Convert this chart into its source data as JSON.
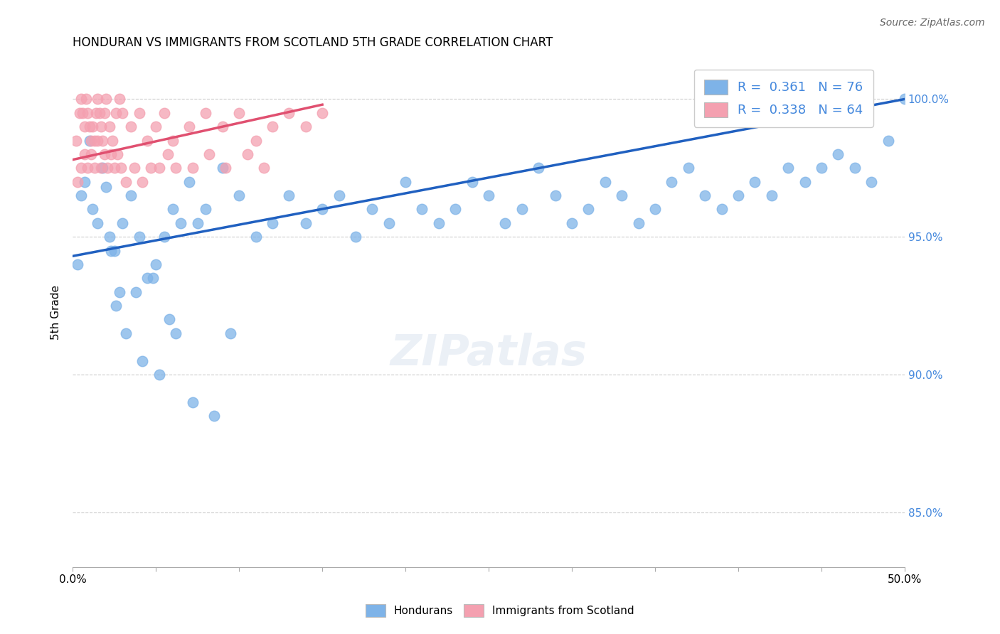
{
  "title": "HONDURAN VS IMMIGRANTS FROM SCOTLAND 5TH GRADE CORRELATION CHART",
  "source": "Source: ZipAtlas.com",
  "ylabel": "5th Grade",
  "ytick_labels": [
    "85.0%",
    "90.0%",
    "95.0%",
    "100.0%"
  ],
  "ytick_values": [
    85.0,
    90.0,
    95.0,
    100.0
  ],
  "xlim": [
    0.0,
    50.0
  ],
  "ylim": [
    83.0,
    101.5
  ],
  "blue_R": 0.361,
  "blue_N": 76,
  "pink_R": 0.338,
  "pink_N": 64,
  "blue_color": "#7EB3E8",
  "pink_color": "#F4A0B0",
  "blue_line_color": "#2060C0",
  "pink_line_color": "#E05070",
  "legend_text_color": "#4488DD",
  "blue_scatter_x": [
    0.3,
    0.5,
    0.7,
    1.0,
    1.2,
    1.5,
    1.8,
    2.0,
    2.2,
    2.5,
    2.8,
    3.0,
    3.5,
    4.0,
    4.5,
    5.0,
    5.5,
    6.0,
    6.5,
    7.0,
    7.5,
    8.0,
    9.0,
    10.0,
    11.0,
    12.0,
    13.0,
    14.0,
    15.0,
    16.0,
    17.0,
    18.0,
    19.0,
    20.0,
    21.0,
    22.0,
    23.0,
    24.0,
    25.0,
    26.0,
    27.0,
    28.0,
    29.0,
    30.0,
    31.0,
    32.0,
    33.0,
    34.0,
    35.0,
    36.0,
    37.0,
    38.0,
    39.0,
    40.0,
    41.0,
    42.0,
    43.0,
    44.0,
    45.0,
    46.0,
    47.0,
    48.0,
    49.0,
    50.0,
    2.3,
    2.6,
    3.2,
    3.8,
    4.2,
    5.2,
    6.2,
    7.2,
    8.5,
    9.5,
    4.8,
    5.8
  ],
  "blue_scatter_y": [
    94.0,
    96.5,
    97.0,
    98.5,
    96.0,
    95.5,
    97.5,
    96.8,
    95.0,
    94.5,
    93.0,
    95.5,
    96.5,
    95.0,
    93.5,
    94.0,
    95.0,
    96.0,
    95.5,
    97.0,
    95.5,
    96.0,
    97.5,
    96.5,
    95.0,
    95.5,
    96.5,
    95.5,
    96.0,
    96.5,
    95.0,
    96.0,
    95.5,
    97.0,
    96.0,
    95.5,
    96.0,
    97.0,
    96.5,
    95.5,
    96.0,
    97.5,
    96.5,
    95.5,
    96.0,
    97.0,
    96.5,
    95.5,
    96.0,
    97.0,
    97.5,
    96.5,
    96.0,
    96.5,
    97.0,
    96.5,
    97.5,
    97.0,
    97.5,
    98.0,
    97.5,
    97.0,
    98.5,
    100.0,
    94.5,
    92.5,
    91.5,
    93.0,
    90.5,
    90.0,
    91.5,
    89.0,
    88.5,
    91.5,
    93.5,
    92.0
  ],
  "pink_scatter_x": [
    0.2,
    0.4,
    0.5,
    0.6,
    0.7,
    0.8,
    0.9,
    1.0,
    1.1,
    1.2,
    1.3,
    1.4,
    1.5,
    1.6,
    1.7,
    1.8,
    1.9,
    2.0,
    2.2,
    2.4,
    2.6,
    2.8,
    3.0,
    3.5,
    4.0,
    4.5,
    5.0,
    5.5,
    6.0,
    7.0,
    8.0,
    9.0,
    10.0,
    11.0,
    12.0,
    13.0,
    14.0,
    15.0,
    0.3,
    0.5,
    0.7,
    0.9,
    1.1,
    1.3,
    1.5,
    1.7,
    1.9,
    2.1,
    2.3,
    2.5,
    2.7,
    2.9,
    3.2,
    3.7,
    4.2,
    4.7,
    5.2,
    5.7,
    6.2,
    7.2,
    8.2,
    9.2,
    10.5,
    11.5
  ],
  "pink_scatter_y": [
    98.5,
    99.5,
    100.0,
    99.5,
    99.0,
    100.0,
    99.5,
    99.0,
    98.5,
    99.0,
    98.5,
    99.5,
    100.0,
    99.5,
    99.0,
    98.5,
    99.5,
    100.0,
    99.0,
    98.5,
    99.5,
    100.0,
    99.5,
    99.0,
    99.5,
    98.5,
    99.0,
    99.5,
    98.5,
    99.0,
    99.5,
    99.0,
    99.5,
    98.5,
    99.0,
    99.5,
    99.0,
    99.5,
    97.0,
    97.5,
    98.0,
    97.5,
    98.0,
    97.5,
    98.5,
    97.5,
    98.0,
    97.5,
    98.0,
    97.5,
    98.0,
    97.5,
    97.0,
    97.5,
    97.0,
    97.5,
    97.5,
    98.0,
    97.5,
    97.5,
    98.0,
    97.5,
    98.0,
    97.5
  ],
  "blue_line_x0": 0.0,
  "blue_line_x1": 50.0,
  "blue_line_y0": 94.3,
  "blue_line_y1": 100.0,
  "pink_line_x0": 0.0,
  "pink_line_x1": 15.0,
  "pink_line_y0": 97.8,
  "pink_line_y1": 99.8,
  "grid_color": "#CCCCCC",
  "right_axis_color": "#4488DD"
}
